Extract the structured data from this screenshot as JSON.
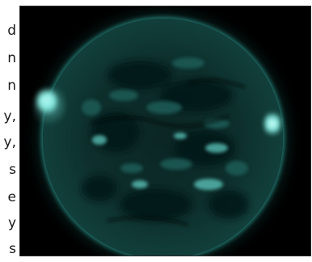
{
  "side_text": {
    "lines": [
      "d",
      "n",
      "n",
      "y,",
      "y,",
      "s",
      "e",
      "y",
      "s"
    ]
  },
  "image": {
    "subject": "sun-extreme-ultraviolet",
    "colors": {
      "background": "#000000",
      "disk_core": "#0d2f2c",
      "limb": "#56d8cf",
      "active_region": "#bff7f2"
    }
  }
}
